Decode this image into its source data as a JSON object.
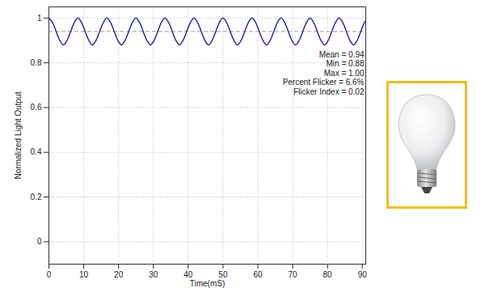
{
  "chart_data": {
    "type": "line",
    "x_label": "Time(mS)",
    "y_label": "Normalized Light Output",
    "xlim": [
      0,
      91
    ],
    "xticks": [
      0,
      10,
      20,
      30,
      40,
      50,
      60,
      70,
      80,
      90
    ],
    "ylim": [
      -0.1,
      1.05
    ],
    "yticks": [
      0,
      0.2,
      0.4,
      0.6,
      0.8,
      1
    ],
    "grid": true,
    "mean_line": 0.94,
    "annotations": [
      "Mean = 0.94",
      "Min = 0.88",
      "Max = 1.00",
      "Percent Flicker = 6.6%",
      "Flicker Index = 0.02"
    ],
    "series": [
      {
        "color": "#2a2aa0",
        "x": [
          0,
          1.04,
          2.08,
          3.13,
          4.17,
          5.21,
          6.25,
          7.29,
          8.33,
          9.38,
          10.42,
          11.46,
          12.5,
          13.54,
          14.58,
          15.63,
          16.67,
          17.71,
          18.75,
          19.79,
          20.83,
          21.88,
          22.92,
          23.96,
          25,
          26.04,
          27.08,
          28.13,
          29.17,
          30.21,
          31.25,
          32.29,
          33.33,
          34.38,
          35.42,
          36.46,
          37.5,
          38.54,
          39.58,
          40.63,
          41.67,
          42.71,
          43.75,
          44.79,
          45.83,
          46.88,
          47.92,
          48.96,
          50,
          51.04,
          52.08,
          53.13,
          54.17,
          55.21,
          56.25,
          57.29,
          58.33,
          59.38,
          60.42,
          61.46,
          62.5,
          63.54,
          64.58,
          65.63,
          66.67,
          67.71,
          68.75,
          69.79,
          70.83,
          71.88,
          72.92,
          73.96,
          75,
          76.04,
          77.08,
          78.13,
          79.17,
          80.21,
          81.25,
          82.29,
          83.33,
          84.38,
          85.42,
          86.46,
          87.5,
          88.54,
          89.58,
          90.63,
          91.67
        ],
        "values": [
          1.0,
          0.98,
          0.94,
          0.9,
          0.88,
          0.9,
          0.94,
          0.98,
          1.0,
          0.98,
          0.94,
          0.9,
          0.88,
          0.9,
          0.94,
          0.98,
          1.0,
          0.98,
          0.94,
          0.9,
          0.88,
          0.9,
          0.94,
          0.98,
          1.0,
          0.98,
          0.94,
          0.9,
          0.88,
          0.9,
          0.94,
          0.98,
          1.0,
          0.98,
          0.94,
          0.9,
          0.88,
          0.9,
          0.94,
          0.98,
          1.0,
          0.98,
          0.94,
          0.9,
          0.88,
          0.9,
          0.94,
          0.98,
          1.0,
          0.98,
          0.94,
          0.9,
          0.88,
          0.9,
          0.94,
          0.98,
          1.0,
          0.98,
          0.94,
          0.9,
          0.88,
          0.9,
          0.94,
          0.98,
          1.0,
          0.98,
          0.94,
          0.9,
          0.88,
          0.9,
          0.94,
          0.98,
          1.0,
          0.98,
          0.94,
          0.9,
          0.88,
          0.9,
          0.94,
          0.98,
          1.0,
          0.98,
          0.94,
          0.9,
          0.88,
          0.9,
          0.94,
          0.98,
          1.0
        ]
      }
    ]
  }
}
